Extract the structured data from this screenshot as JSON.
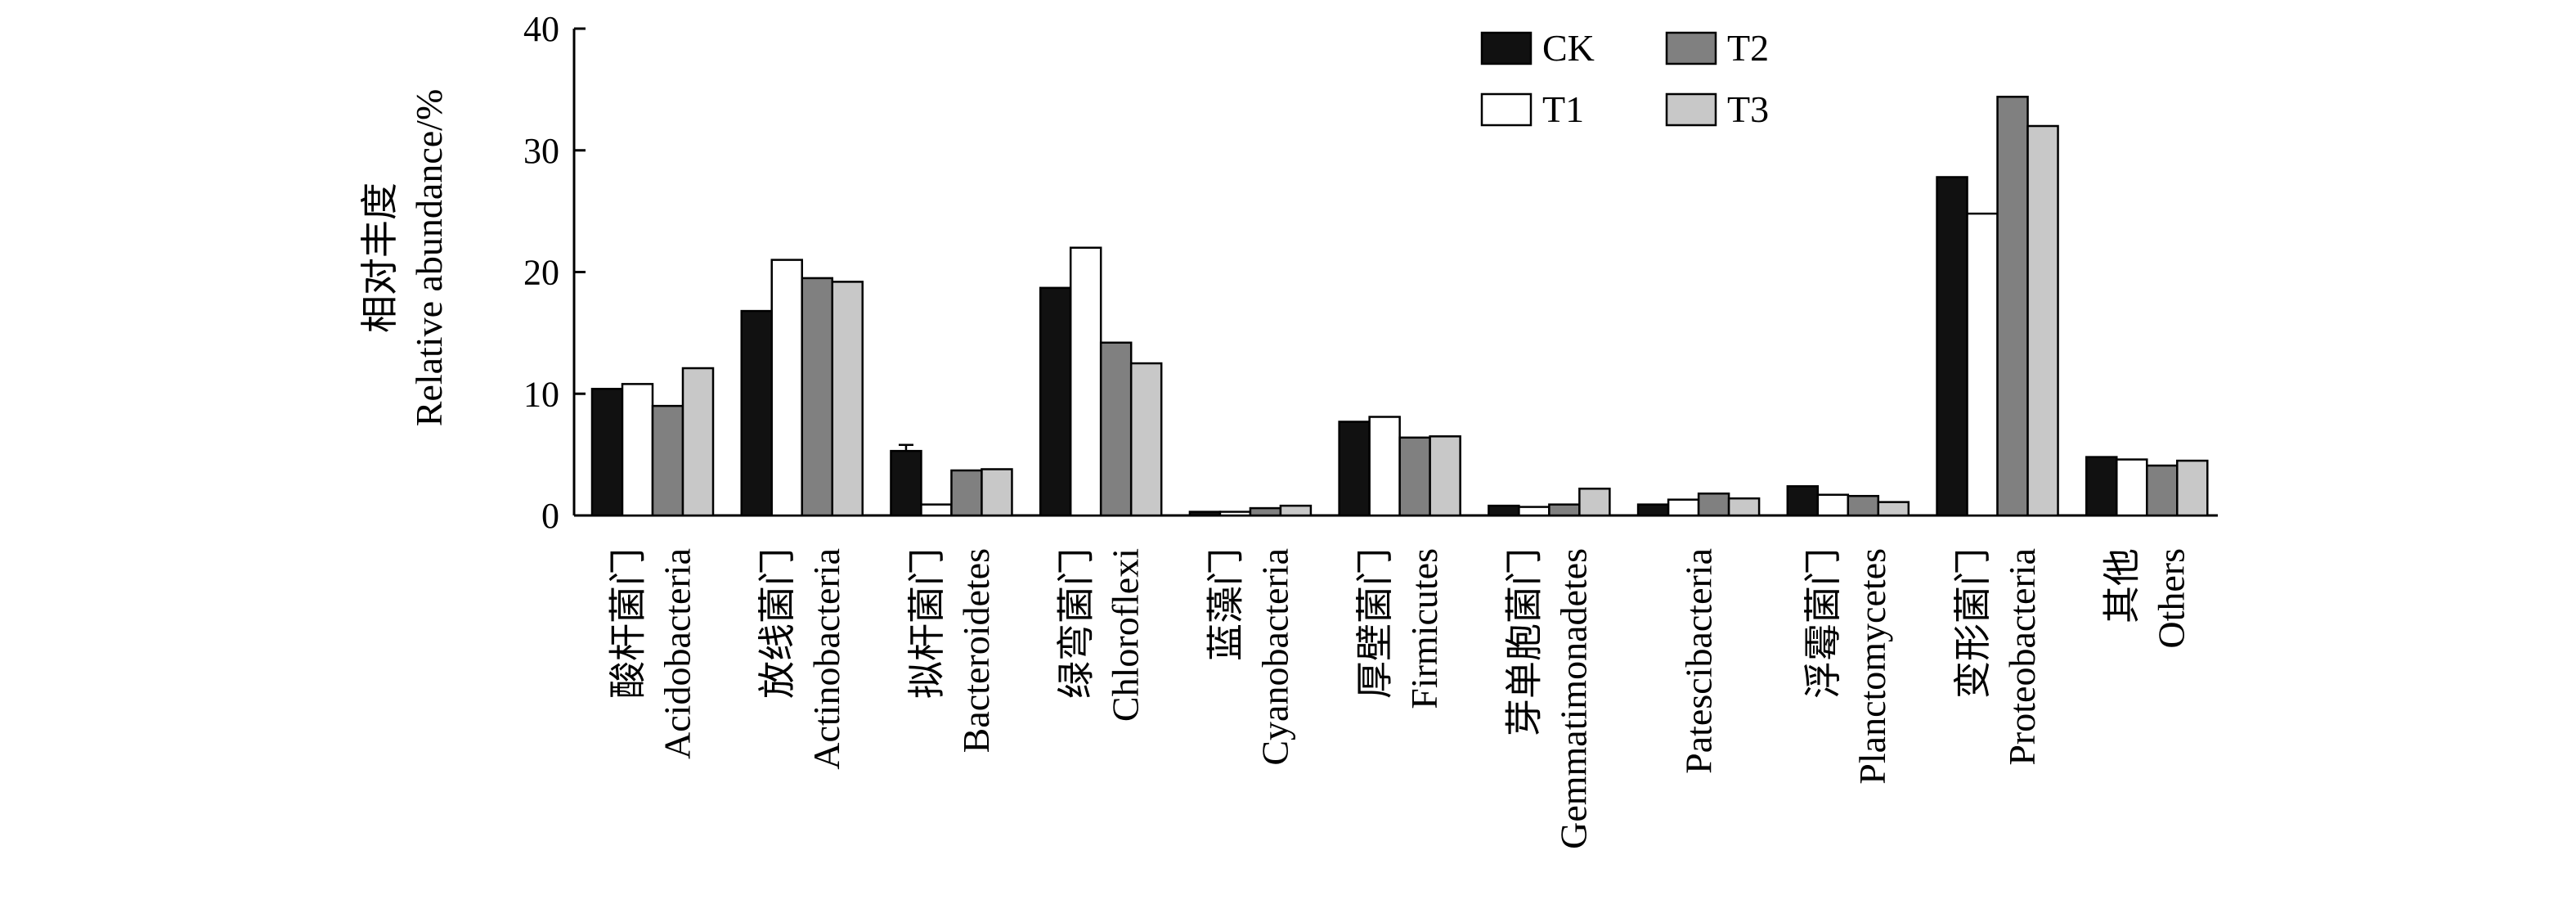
{
  "chart_data": {
    "type": "bar",
    "ylabel_zh": "相对丰度",
    "ylabel_en": "Relative abundance/%",
    "ylim": [
      0,
      40
    ],
    "yticks": [
      0,
      10,
      20,
      30,
      40
    ],
    "grid": false,
    "legend_position": "top-right",
    "categories": [
      {
        "zh": "酸杆菌门",
        "en": "Acidobacteria"
      },
      {
        "zh": "放线菌门",
        "en": "Actinobacteria"
      },
      {
        "zh": "拟杆菌门",
        "en": "Bacteroidetes"
      },
      {
        "zh": "绿弯菌门",
        "en": "Chloroflexi"
      },
      {
        "zh": "蓝藻门",
        "en": "Cyanobacteria"
      },
      {
        "zh": "厚壁菌门",
        "en": "Firmicutes"
      },
      {
        "zh": "芽单胞菌门",
        "en": "Gemmatimonadetes"
      },
      {
        "zh": "",
        "en": "Patescibacteria"
      },
      {
        "zh": "浮霉菌门",
        "en": "Planctomycetes"
      },
      {
        "zh": "变形菌门",
        "en": "Proteobacteria"
      },
      {
        "zh": "其他",
        "en": "Others"
      }
    ],
    "series": [
      {
        "name": "CK",
        "color": "#111111",
        "values": [
          10.4,
          16.8,
          5.3,
          18.7,
          0.3,
          7.7,
          0.8,
          0.9,
          2.4,
          27.8,
          4.8
        ]
      },
      {
        "name": "T1",
        "color": "#ffffff",
        "values": [
          10.8,
          21.0,
          0.9,
          22.0,
          0.3,
          8.1,
          0.7,
          1.3,
          1.7,
          24.8,
          4.6
        ]
      },
      {
        "name": "T2",
        "color": "#808080",
        "values": [
          9.0,
          19.5,
          3.7,
          14.2,
          0.6,
          6.4,
          0.9,
          1.8,
          1.6,
          34.4,
          4.1
        ]
      },
      {
        "name": "T3",
        "color": "#c8c8c8",
        "values": [
          12.1,
          19.2,
          3.8,
          12.5,
          0.8,
          6.5,
          2.2,
          1.4,
          1.1,
          32.0,
          4.5
        ]
      }
    ],
    "error_bars": [
      {
        "series": "CK",
        "category": "Bacteroidetes",
        "value": 0.5
      }
    ]
  }
}
